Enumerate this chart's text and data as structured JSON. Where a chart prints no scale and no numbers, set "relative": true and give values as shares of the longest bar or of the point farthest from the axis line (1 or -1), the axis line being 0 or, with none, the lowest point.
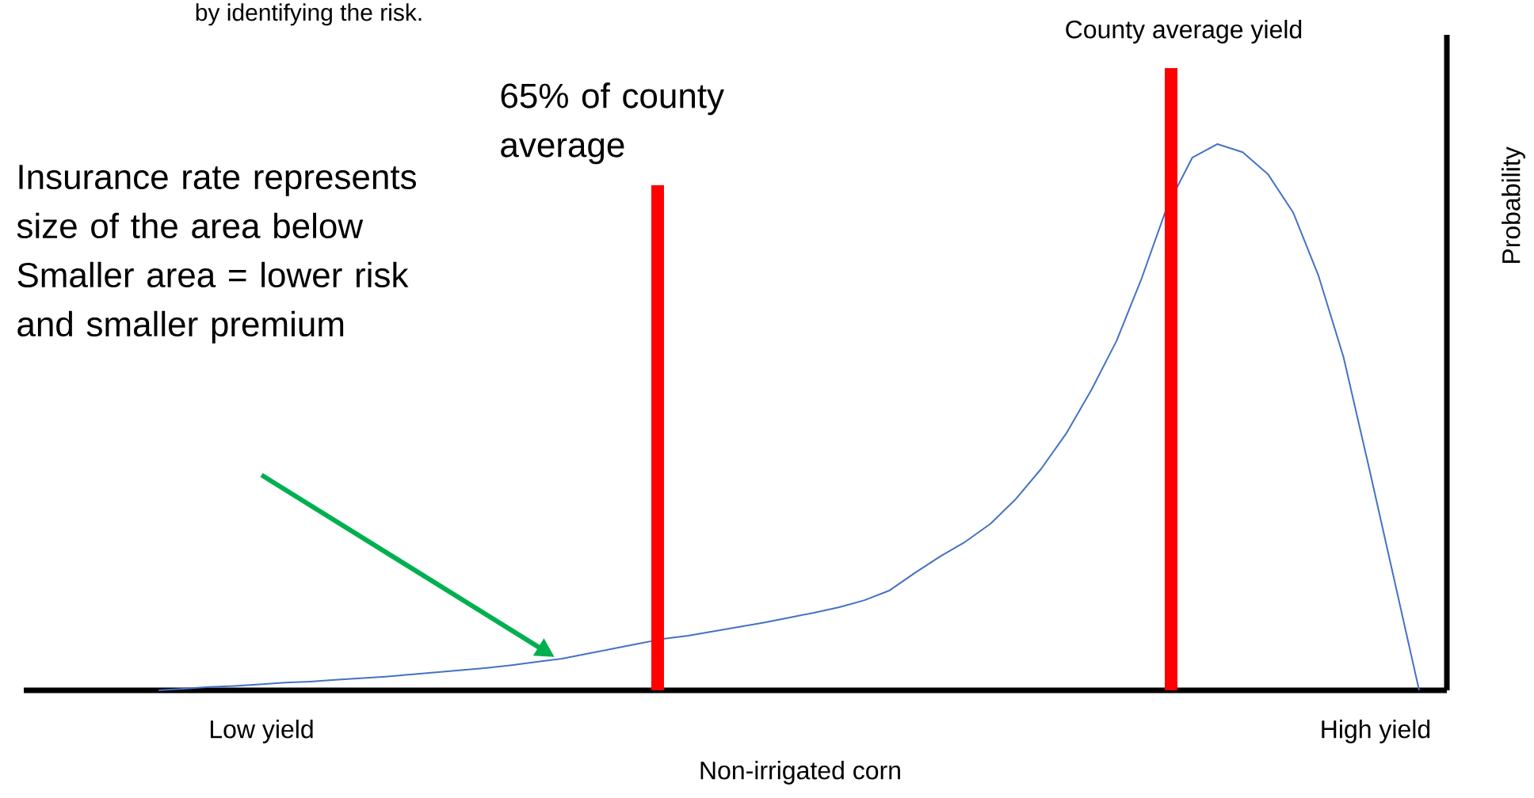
{
  "chart_data": {
    "type": "line",
    "relative": true,
    "xlabel": "Non-irrigated corn",
    "categories": [
      null,
      null,
      null,
      null,
      null,
      null,
      null,
      null,
      null,
      null,
      null,
      null,
      null,
      null,
      null,
      null,
      null,
      null,
      null,
      null,
      null,
      null,
      null,
      null,
      null,
      null,
      null,
      null,
      null,
      null,
      null,
      null,
      null,
      null,
      null,
      null,
      null,
      null,
      null,
      null,
      null,
      null,
      null,
      null,
      null,
      null,
      null,
      null,
      null,
      null,
      null
    ],
    "series": [
      {
        "color": "#4472c4",
        "values": [
          0,
          0.003,
          0.006,
          0.008,
          0.011,
          0.014,
          0.016,
          0.019,
          0.022,
          0.025,
          0.029,
          0.033,
          0.037,
          0.041,
          0.046,
          0.052,
          0.058,
          0.067,
          0.076,
          0.085,
          0.094,
          0.1,
          0.108,
          0.116,
          0.124,
          0.133,
          0.142,
          0.152,
          0.165,
          0.183,
          0.215,
          0.245,
          0.272,
          0.305,
          0.35,
          0.405,
          0.47,
          0.55,
          0.64,
          0.755,
          0.885,
          0.975,
          1,
          0.985,
          0.945,
          0.875,
          0.76,
          0.61,
          0.41,
          0.205,
          0
        ]
      }
    ],
    "annotations": [
      "65% of county average",
      "County average yield",
      "Probability",
      "by identifying the risk.",
      "Insurance rate represents size of the area below",
      "Smaller area = lower risk and smaller premium",
      "Low yield",
      "High yield"
    ]
  }
}
